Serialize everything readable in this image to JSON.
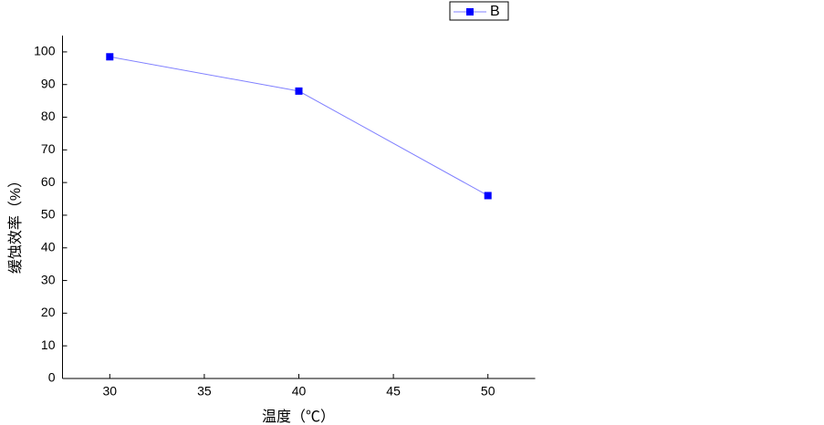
{
  "chart_data": {
    "type": "line",
    "x_label": "温度（℃）",
    "y_label": "缓蚀效率（%）",
    "x": [
      30,
      40,
      50
    ],
    "series": [
      {
        "name": "B",
        "color": "#0000ff",
        "line_color": "#8080ff",
        "values": [
          98.5,
          88,
          56
        ]
      }
    ],
    "xlim": [
      27.5,
      52.5
    ],
    "xticks": [
      30,
      35,
      40,
      45,
      50
    ],
    "ylim": [
      0,
      105
    ],
    "yticks": [
      0,
      10,
      20,
      30,
      40,
      50,
      60,
      70,
      80,
      90,
      100
    ],
    "legend": "top-right"
  }
}
